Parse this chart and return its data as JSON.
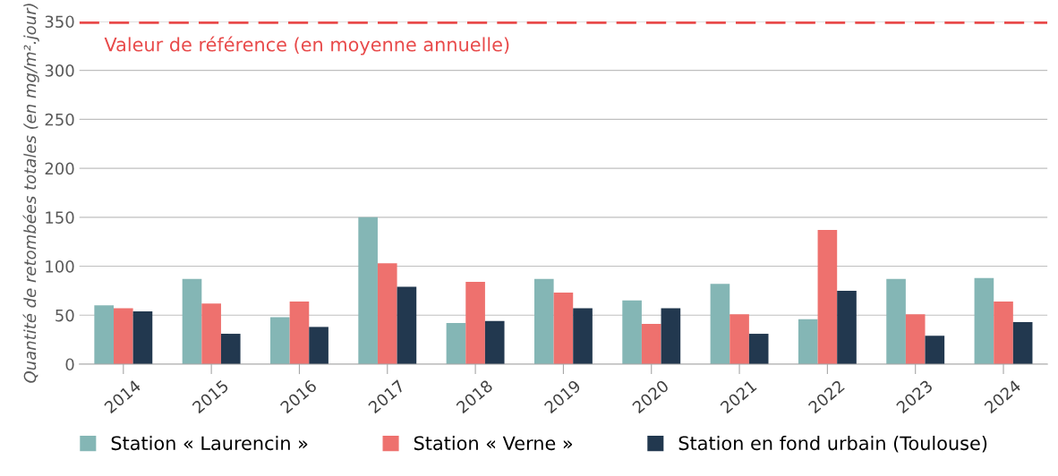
{
  "chart_data": {
    "type": "bar",
    "ylabel": "Quantité de retombées totales (en mg/m².jour)",
    "categories": [
      "2014",
      "2015",
      "2016",
      "2017",
      "2018",
      "2019",
      "2020",
      "2021",
      "2022",
      "2023",
      "2024"
    ],
    "series": [
      {
        "name": "Station « Laurencin »",
        "color": "#84b6b5",
        "values": [
          60,
          87,
          48,
          150,
          42,
          87,
          65,
          82,
          46,
          87,
          88
        ]
      },
      {
        "name": "Station « Verne »",
        "color": "#ee716e",
        "values": [
          57,
          62,
          64,
          103,
          84,
          73,
          41,
          51,
          137,
          51,
          64
        ]
      },
      {
        "name": "Station en fond urbain (Toulouse)",
        "color": "#22384f",
        "values": [
          54,
          31,
          38,
          79,
          44,
          57,
          57,
          31,
          75,
          29,
          43
        ]
      }
    ],
    "ylim": [
      0,
      350
    ],
    "yticks": [
      0,
      50,
      100,
      150,
      200,
      250,
      300,
      350
    ],
    "grid": "y",
    "legend": "bottom",
    "ref_lines": [
      {
        "axis": "y",
        "value": 350,
        "label": "Valeur de référence (en moyenne annuelle)",
        "color": "#e84a4a",
        "line_style": "dashed"
      }
    ]
  }
}
